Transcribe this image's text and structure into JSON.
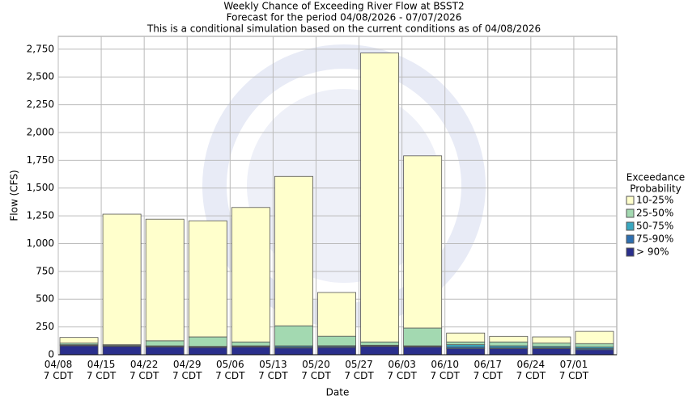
{
  "chart_data": {
    "type": "stacked_bar",
    "title": "Weekly Chance of Exceeding River Flow at BSST2",
    "subtitle": [
      "Forecast for the period 04/08/2026 - 07/07/2026",
      "This is a conditional simulation based on the current conditions as of 04/08/2026"
    ],
    "x_label": "Date",
    "y_label": "Flow (CFS)",
    "legend_title": [
      "Exceedance",
      "Probability"
    ],
    "legend_position": "right",
    "categories": [
      "04/08\n7 CDT",
      "04/15\n7 CDT",
      "04/22\n7 CDT",
      "04/29\n7 CDT",
      "05/06\n7 CDT",
      "05/13\n7 CDT",
      "05/20\n7 CDT",
      "05/27\n7 CDT",
      "06/03\n7 CDT",
      "06/10\n7 CDT",
      "06/17\n7 CDT",
      "06/24\n7 CDT",
      "07/01\n7 CDT"
    ],
    "series": [
      {
        "name": "10-25%",
        "color": "#ffffcc",
        "values": [
          50,
          1175,
          1095,
          1045,
          1210,
          1345,
          394,
          2600,
          1550,
          80,
          50,
          55,
          110
        ]
      },
      {
        "name": "25-50%",
        "color": "#a3d9b1",
        "values": [
          15,
          7,
          45,
          85,
          35,
          180,
          85,
          30,
          160,
          25,
          35,
          30,
          30
        ]
      },
      {
        "name": "50-75%",
        "color": "#3aa8c0",
        "values": [
          5,
          4,
          5,
          5,
          5,
          10,
          8,
          5,
          5,
          20,
          15,
          12,
          15
        ]
      },
      {
        "name": "75-90%",
        "color": "#2e6fb0",
        "values": [
          5,
          4,
          5,
          5,
          5,
          10,
          8,
          5,
          5,
          15,
          10,
          8,
          10
        ]
      },
      {
        "name": "> 90%",
        "color": "#2a2f8c",
        "values": [
          80,
          75,
          70,
          65,
          70,
          60,
          65,
          75,
          70,
          55,
          55,
          55,
          45
        ]
      }
    ],
    "ylim": [
      0,
      2865
    ],
    "yticks": [
      0,
      250,
      500,
      750,
      {
        "value": 1000,
        "label": "1,000"
      },
      {
        "value": 1250,
        "label": "1,250"
      },
      {
        "value": 1500,
        "label": "1,500"
      },
      {
        "value": 1750,
        "label": "1,750"
      },
      {
        "value": 2000,
        "label": "2,000"
      },
      {
        "value": 2250,
        "label": "2,250"
      },
      {
        "value": 2500,
        "label": "2,500"
      },
      {
        "value": 2750,
        "label": "2,750"
      }
    ],
    "grid": true
  }
}
